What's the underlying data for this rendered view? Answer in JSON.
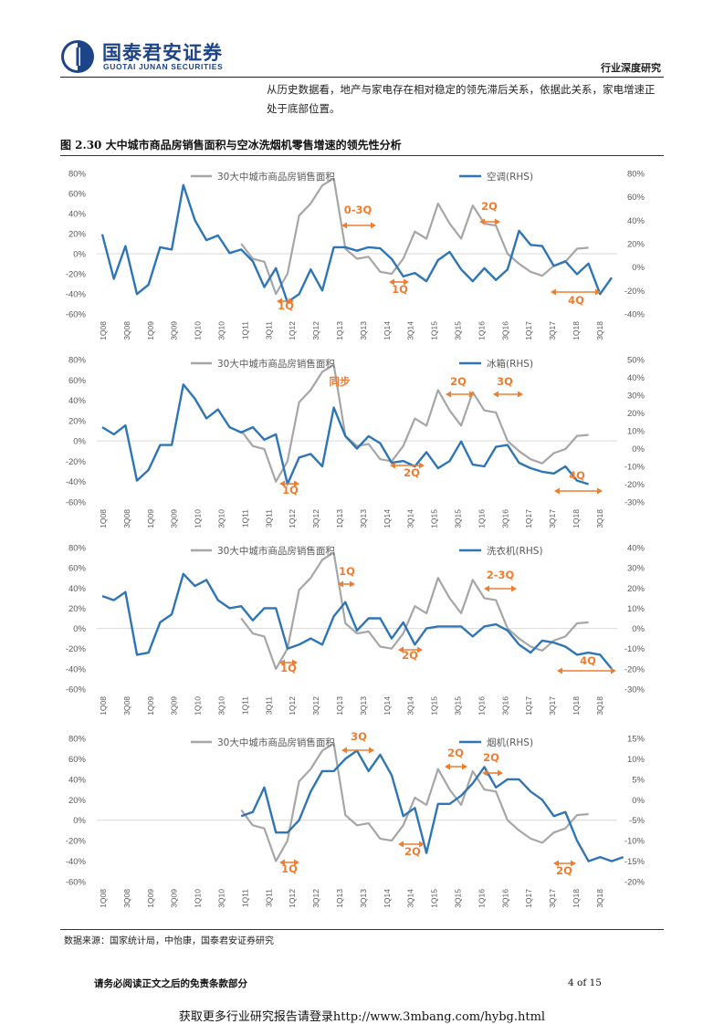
{
  "header": {
    "logo_cn": "国泰君安证券",
    "logo_en": "GUOTAI JUNAN SECURITIES",
    "report_type": "行业深度研究",
    "logo_colors": {
      "primary": "#1d4489"
    }
  },
  "intro_text": "从历史数据看，地产与家电存在相对稳定的领先滞后关系，依据此关系，家电增速正处于底部位置。",
  "figure_title": "图 2.30 大中城市商品房销售面积与空冰洗烟机零售增速的领先性分析",
  "source": "数据来源：国家统计局，中怡康，国泰君安证券研究",
  "disclaimer": "请务必阅读正文之后的免责条款部分",
  "page_number": "4 of 15",
  "watermark": "获取更多行业研究报告请登录http://www.3mbang.com/hybg.html",
  "colors": {
    "housing": "#a6a6a6",
    "appliance": "#2e75b6",
    "annotation": "#ed7d31",
    "axis": "#d9d9d9"
  },
  "chart_data": [
    {
      "type": "line",
      "title": "",
      "x_tick_labels": [
        "1Q08",
        "3Q08",
        "1Q09",
        "3Q09",
        "1Q10",
        "3Q10",
        "1Q11",
        "3Q11",
        "1Q12",
        "3Q12",
        "1Q13",
        "3Q13",
        "1Q14",
        "3Q14",
        "1Q15",
        "3Q15",
        "1Q16",
        "3Q16",
        "1Q17",
        "3Q17",
        "1Q18",
        "3Q18"
      ],
      "left_axis": {
        "ylim": [
          -60,
          80
        ],
        "ticks": [
          "-60%",
          "-40%",
          "-20%",
          "0%",
          "20%",
          "40%",
          "60%",
          "80%"
        ]
      },
      "right_axis": {
        "ylim": [
          -40,
          80
        ],
        "ticks": [
          "-40%",
          "-20%",
          "0%",
          "20%",
          "40%",
          "60%",
          "80%"
        ]
      },
      "legend": {
        "housing": "30大中城市商品房销售面积",
        "appliance": "空调(RHS)"
      },
      "series": [
        {
          "name": "30大中城市商品房销售面积",
          "axis": "left",
          "start_index": 12,
          "values": [
            10,
            -5,
            -8,
            -40,
            -20,
            38,
            50,
            68,
            75,
            5,
            -5,
            -3,
            -18,
            -20,
            -5,
            22,
            15,
            50,
            30,
            15,
            48,
            30,
            28,
            0,
            -10,
            -18,
            -22,
            -12,
            -8,
            5,
            6
          ]
        },
        {
          "name": "空调(RHS)",
          "axis": "right",
          "start_index": 0,
          "values": [
            28,
            -10,
            18,
            -23,
            -15,
            17,
            15,
            70,
            40,
            23,
            27,
            12,
            15,
            5,
            -17,
            -1,
            -30,
            -23,
            -2,
            -20,
            17,
            17,
            14,
            17,
            16,
            7,
            -8,
            -5,
            -12,
            6,
            13,
            -2,
            -12,
            -1,
            -11,
            -2,
            31,
            19,
            18,
            1,
            5,
            -6,
            3,
            -23,
            -9
          ]
        },
        {
          "name": "空调(RHS)-cont",
          "axis": "right",
          "start_index": 45,
          "values": []
        }
      ],
      "annotations": [
        "0-3Q",
        "1Q",
        "1Q",
        "2Q",
        "4Q"
      ]
    },
    {
      "type": "line",
      "x_tick_labels": [
        "1Q08",
        "3Q08",
        "1Q09",
        "3Q09",
        "1Q10",
        "3Q10",
        "1Q11",
        "3Q11",
        "1Q12",
        "3Q12",
        "1Q13",
        "3Q13",
        "1Q14",
        "3Q14",
        "1Q15",
        "3Q15",
        "1Q16",
        "3Q16",
        "1Q17",
        "3Q17",
        "1Q18",
        "3Q18"
      ],
      "left_axis": {
        "ylim": [
          -60,
          80
        ],
        "ticks": [
          "-60%",
          "-40%",
          "-20%",
          "0%",
          "20%",
          "40%",
          "60%",
          "80%"
        ]
      },
      "right_axis": {
        "ylim": [
          -30,
          50
        ],
        "ticks": [
          "-30%",
          "-20%",
          "-10%",
          "0%",
          "10%",
          "20%",
          "30%",
          "40%",
          "50%"
        ]
      },
      "legend": {
        "housing": "30大中城市商品房销售面积",
        "appliance": "冰箱(RHS)"
      },
      "series": [
        {
          "name": "30大中城市商品房销售面积",
          "axis": "left",
          "start_index": 12,
          "values": [
            10,
            -5,
            -8,
            -40,
            -20,
            38,
            50,
            68,
            75,
            5,
            -5,
            -3,
            -18,
            -20,
            -5,
            22,
            15,
            50,
            30,
            15,
            48,
            30,
            28,
            0,
            -10,
            -18,
            -22,
            -12,
            -8,
            5,
            6
          ]
        },
        {
          "name": "冰箱(RHS)",
          "axis": "right",
          "start_index": 0,
          "values": [
            12,
            8,
            13,
            -18,
            -12,
            2,
            2,
            36,
            28,
            17,
            22,
            12,
            9,
            12,
            5,
            8,
            -20,
            -5,
            -3,
            -10,
            23,
            7,
            0,
            7,
            3,
            -8,
            -7,
            -10,
            -2,
            -11,
            -7,
            4,
            -9,
            -10,
            1,
            2,
            -8,
            -11,
            -13,
            -14,
            -10,
            -18,
            -20
          ]
        }
      ],
      "annotations": [
        "同步",
        "2Q",
        "3Q",
        "1Q",
        "2Q",
        "4Q"
      ]
    },
    {
      "type": "line",
      "x_tick_labels": [
        "1Q08",
        "3Q08",
        "1Q09",
        "3Q09",
        "1Q10",
        "3Q10",
        "1Q11",
        "3Q11",
        "1Q12",
        "3Q12",
        "1Q13",
        "3Q13",
        "1Q14",
        "3Q14",
        "1Q15",
        "3Q15",
        "1Q16",
        "3Q16",
        "1Q17",
        "3Q17",
        "1Q18",
        "3Q18"
      ],
      "left_axis": {
        "ylim": [
          -60,
          80
        ],
        "ticks": [
          "-60%",
          "-40%",
          "-20%",
          "0%",
          "20%",
          "40%",
          "60%",
          "80%"
        ]
      },
      "right_axis": {
        "ylim": [
          -30,
          40
        ],
        "ticks": [
          "-30%",
          "-20%",
          "-10%",
          "0%",
          "10%",
          "20%",
          "30%",
          "40%"
        ]
      },
      "legend": {
        "housing": "30大中城市商品房销售面积",
        "appliance": "洗衣机(RHS)"
      },
      "series": [
        {
          "name": "30大中城市商品房销售面积",
          "axis": "left",
          "start_index": 12,
          "values": [
            10,
            -5,
            -8,
            -40,
            -20,
            38,
            50,
            68,
            75,
            5,
            -5,
            -3,
            -18,
            -20,
            -5,
            22,
            15,
            50,
            30,
            15,
            48,
            30,
            28,
            0,
            -10,
            -18,
            -22,
            -12,
            -8,
            5,
            6
          ]
        },
        {
          "name": "洗衣机(RHS)",
          "axis": "right",
          "start_index": 0,
          "values": [
            16,
            14,
            18,
            -13,
            -12,
            3,
            7,
            27,
            21,
            24,
            14,
            10,
            11,
            4,
            10,
            10,
            -10,
            -8,
            -5,
            -8,
            6,
            13,
            -1,
            5,
            5,
            -5,
            3,
            -8,
            0,
            1,
            1,
            1,
            -4,
            1,
            2,
            -1,
            -8,
            -12,
            -6,
            -7,
            -9,
            -13,
            -12,
            -13,
            -20
          ]
        }
      ],
      "annotations": [
        "1Q",
        "1Q",
        "2Q",
        "2-3Q",
        "4Q"
      ]
    },
    {
      "type": "line",
      "x_tick_labels": [
        "1Q08",
        "3Q08",
        "1Q09",
        "3Q09",
        "1Q10",
        "3Q10",
        "1Q11",
        "3Q11",
        "1Q12",
        "3Q12",
        "1Q13",
        "3Q13",
        "1Q14",
        "3Q14",
        "1Q15",
        "3Q15",
        "1Q16",
        "3Q16",
        "1Q17",
        "3Q17",
        "1Q18",
        "3Q18"
      ],
      "left_axis": {
        "ylim": [
          -60,
          80
        ],
        "ticks": [
          "-60%",
          "-40%",
          "-20%",
          "0%",
          "20%",
          "40%",
          "60%",
          "80%"
        ]
      },
      "right_axis": {
        "ylim": [
          -20,
          15
        ],
        "ticks": [
          "-20%",
          "-15%",
          "-10%",
          "-5%",
          "0%",
          "5%",
          "10%",
          "15%"
        ]
      },
      "legend": {
        "housing": "30大中城市商品房销售面积",
        "appliance": "烟机(RHS)"
      },
      "series": [
        {
          "name": "30大中城市商品房销售面积",
          "axis": "left",
          "start_index": 12,
          "values": [
            10,
            -5,
            -8,
            -40,
            -20,
            38,
            50,
            68,
            75,
            5,
            -5,
            -3,
            -18,
            -20,
            -5,
            22,
            15,
            50,
            30,
            15,
            48,
            30,
            28,
            0,
            -10,
            -18,
            -22,
            -12,
            -8,
            5,
            6
          ]
        },
        {
          "name": "烟机(RHS)",
          "axis": "right",
          "start_index": 12,
          "values": [
            -4,
            -3,
            3,
            -8,
            -8,
            -5,
            2,
            7,
            7,
            10,
            12,
            7,
            11,
            6,
            -4,
            -2,
            -13,
            -1,
            -1,
            1,
            4,
            8,
            3,
            5,
            5,
            2,
            0,
            -4,
            -3,
            -10,
            -15,
            -14,
            -15,
            -14
          ]
        }
      ],
      "annotations": [
        "3Q",
        "1Q",
        "2Q",
        "2Q",
        "2Q",
        "2Q"
      ]
    }
  ]
}
